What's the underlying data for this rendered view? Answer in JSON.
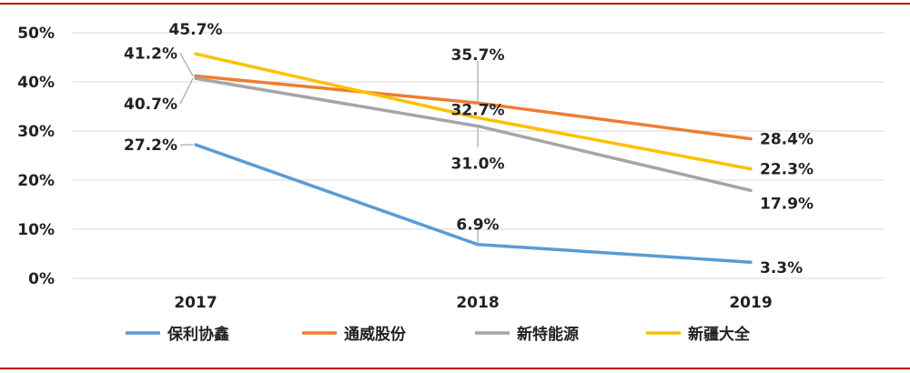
{
  "chart_data": {
    "type": "line",
    "title": "",
    "xlabel": "",
    "ylabel": "",
    "categories": [
      "2017",
      "2018",
      "2019"
    ],
    "ylim": [
      0,
      50
    ],
    "yticks": [
      "0%",
      "10%",
      "20%",
      "30%",
      "40%",
      "50%"
    ],
    "y_unit": "%",
    "grid": true,
    "legend_position": "bottom",
    "series": [
      {
        "name": "保利协鑫",
        "color": "#5b9bd5",
        "values": [
          27.2,
          6.9,
          3.3
        ],
        "labels": [
          "27.2%",
          "6.9%",
          "3.3%"
        ]
      },
      {
        "name": "通威股份",
        "color": "#ed7d31",
        "values": [
          41.2,
          35.7,
          28.4
        ],
        "labels": [
          "41.2%",
          "35.7%",
          "28.4%"
        ]
      },
      {
        "name": "新特能源",
        "color": "#a5a5a5",
        "values": [
          40.7,
          31.0,
          17.9
        ],
        "labels": [
          "40.7%",
          "31.0%",
          "17.9%"
        ]
      },
      {
        "name": "新疆大全",
        "color": "#ffc000",
        "values": [
          45.7,
          32.7,
          22.3
        ],
        "labels": [
          "45.7%",
          "32.7%",
          "22.3%"
        ]
      }
    ]
  },
  "style": {
    "frame_color": "#c00000",
    "grid_color": "#d9d9d9",
    "leader_color": "#a6a6a6"
  }
}
